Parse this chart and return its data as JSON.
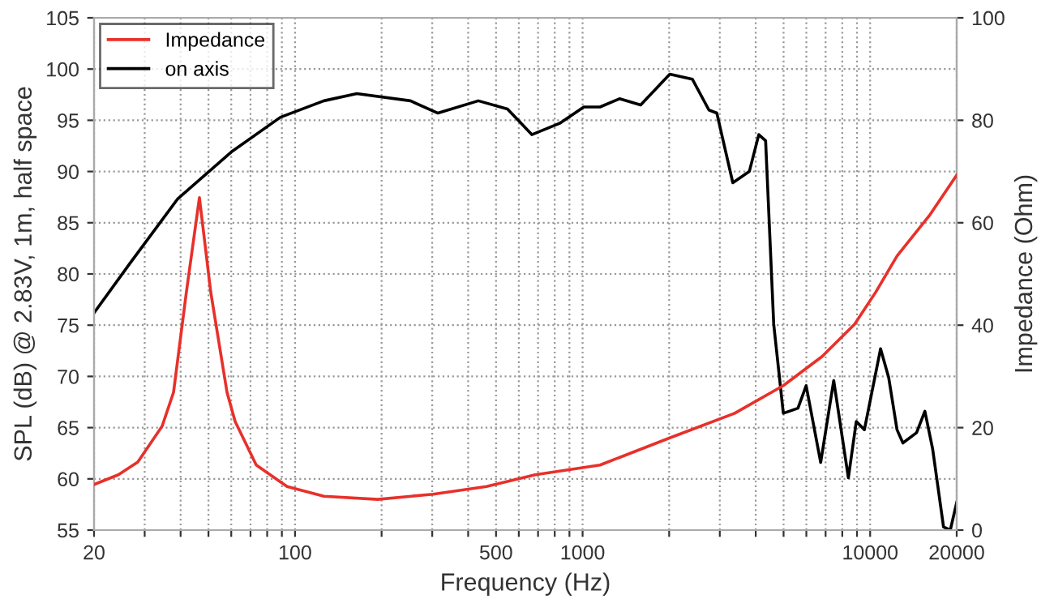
{
  "chart_data": {
    "type": "line",
    "xlabel": "Frequency (Hz)",
    "ylabel": "SPL (dB) @ 2.83V, 1m, half space",
    "y2label": "Impedance (Ohm)",
    "log": "x",
    "grid": true,
    "legend": "top left",
    "line_style": "solid",
    "marker": "none",
    "xlim": [
      20,
      20000
    ],
    "ylim": [
      55,
      105
    ],
    "y2lim": [
      0,
      100
    ],
    "xticks": [
      20,
      {
        "value": 30,
        "label": null
      },
      {
        "value": 40,
        "label": null
      },
      {
        "value": 50,
        "label": null
      },
      {
        "value": 60,
        "label": null
      },
      {
        "value": 70,
        "label": null
      },
      {
        "value": 80,
        "label": null
      },
      {
        "value": 90,
        "label": null
      },
      100,
      {
        "value": 200,
        "label": null
      },
      {
        "value": 300,
        "label": null
      },
      {
        "value": 400,
        "label": null
      },
      500,
      {
        "value": 600,
        "label": null
      },
      {
        "value": 700,
        "label": null
      },
      {
        "value": 800,
        "label": null
      },
      {
        "value": 900,
        "label": null
      },
      1000,
      {
        "value": 2000,
        "label": null
      },
      {
        "value": 3000,
        "label": null
      },
      {
        "value": 4000,
        "label": null
      },
      {
        "value": 5000,
        "label": null
      },
      {
        "value": 6000,
        "label": null
      },
      {
        "value": 7000,
        "label": null
      },
      {
        "value": 8000,
        "label": null
      },
      {
        "value": 9000,
        "label": null
      },
      10000,
      20000
    ],
    "yticks": [
      55,
      60,
      65,
      70,
      75,
      80,
      85,
      90,
      95,
      100,
      105
    ],
    "y2ticks": [
      0,
      20,
      40,
      60,
      80,
      100
    ],
    "series": [
      {
        "name": "Impedance",
        "color": "#e8302a",
        "axis": "y2",
        "x": [
          20,
          24.3,
          28.4,
          34.5,
          37.8,
          41.9,
          46.5,
          50.9,
          58,
          61.9,
          73.3,
          93.8,
          126,
          194,
          302,
          463,
          684,
          1150,
          2010,
          3380,
          4990,
          6810,
          8830,
          10470,
          12400,
          16070,
          20000
        ],
        "values": [
          8.9,
          10.8,
          13.3,
          20.3,
          26.9,
          46.5,
          64.9,
          46.5,
          26.9,
          21.2,
          12.7,
          8.5,
          6.6,
          6.0,
          7.0,
          8.5,
          10.8,
          12.7,
          18.0,
          22.8,
          28.2,
          33.9,
          40.2,
          46.5,
          53.5,
          61.4,
          69.3
        ]
      },
      {
        "name": "on axis",
        "color": "#000000",
        "axis": "y",
        "x": [
          20,
          26.6,
          39,
          60,
          89,
          126,
          164,
          252,
          314,
          434,
          548,
          666,
          832,
          1010,
          1150,
          1344,
          1592,
          2010,
          2410,
          2750,
          2930,
          3330,
          3800,
          4100,
          4330,
          4620,
          4990,
          5610,
          5990,
          6730,
          7470,
          8400,
          8950,
          9550,
          10870,
          11600,
          12400,
          13000,
          14500,
          15500,
          16500,
          18000,
          19000,
          20000
        ],
        "values": [
          76.2,
          81.0,
          87.3,
          91.9,
          95.3,
          96.9,
          97.6,
          96.9,
          95.7,
          96.9,
          96.1,
          93.6,
          94.7,
          96.3,
          96.3,
          97.1,
          96.5,
          99.5,
          99.0,
          96.0,
          95.7,
          88.9,
          90.0,
          93.6,
          93.0,
          75.1,
          66.4,
          66.9,
          69.1,
          61.6,
          69.6,
          60.1,
          65.6,
          64.8,
          72.7,
          69.9,
          64.8,
          63.5,
          64.5,
          66.6,
          62.9,
          55.3,
          55.0,
          57.7
        ]
      }
    ]
  }
}
